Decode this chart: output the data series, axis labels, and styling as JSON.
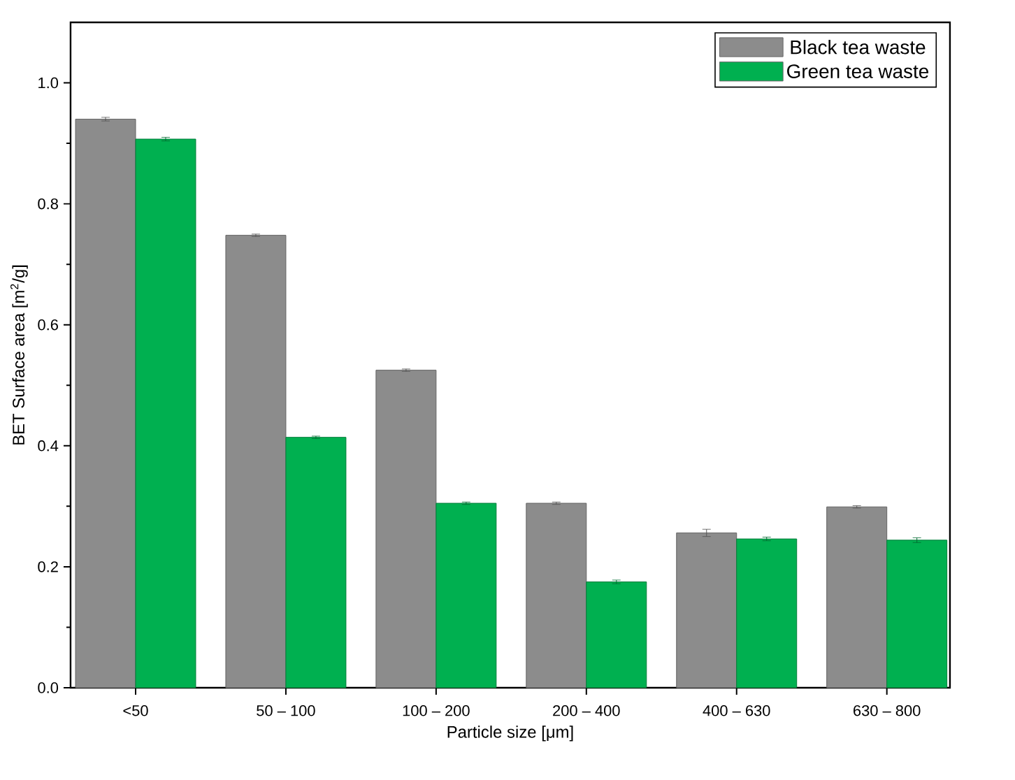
{
  "chart_data": {
    "type": "bar",
    "xlabel": "Particle size [μm]",
    "ylabel": "BET Surface area [m$^{2}$/g]",
    "categories": [
      "<50",
      "50 – 100",
      "100 – 200",
      "200 – 400",
      "400 – 630",
      "630 – 800"
    ],
    "series": [
      {
        "name": "Black tea waste",
        "color": "#8c8c8c",
        "values": [
          0.94,
          0.748,
          0.525,
          0.305,
          0.256,
          0.299
        ],
        "errors": [
          0.003,
          0.002,
          0.002,
          0.002,
          0.006,
          0.002
        ]
      },
      {
        "name": "Green tea waste",
        "color": "#00b050",
        "values": [
          0.907,
          0.414,
          0.305,
          0.175,
          0.246,
          0.244
        ],
        "errors": [
          0.003,
          0.002,
          0.002,
          0.003,
          0.003,
          0.004
        ]
      }
    ],
    "ylim": [
      0,
      1.1
    ],
    "yticks": [
      {
        "value": 0,
        "label": "0.0"
      },
      {
        "value": 0.2,
        "label": "0.2"
      },
      {
        "value": 0.4,
        "label": "0.4"
      },
      {
        "value": 0.6,
        "label": "0.6"
      },
      {
        "value": 0.8,
        "label": "0.8"
      },
      {
        "value": 1.0,
        "label": "1.0"
      }
    ],
    "legend": "top right",
    "grid": false
  }
}
